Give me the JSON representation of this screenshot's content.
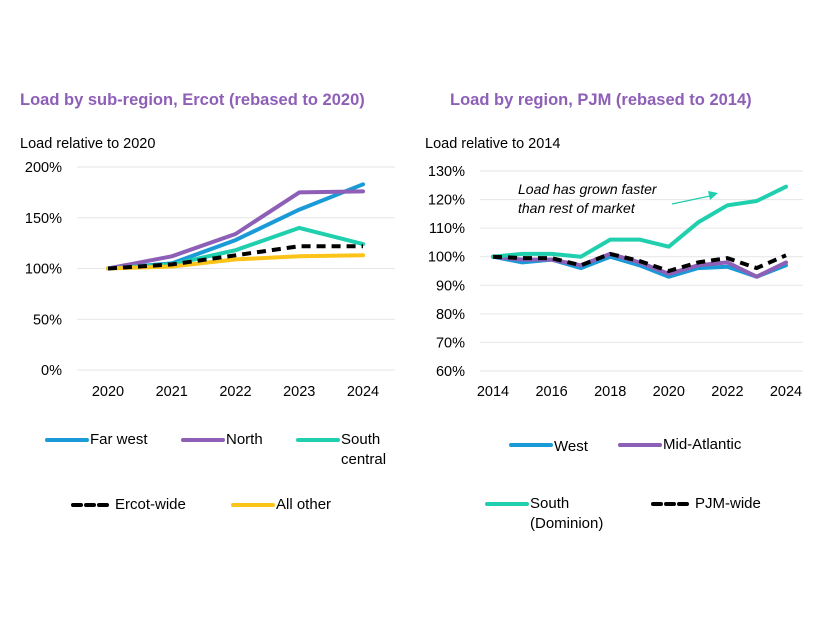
{
  "chart_data": [
    {
      "type": "line",
      "title": "Load by sub-region, Ercot (rebased to 2020)",
      "ylabel": "Load relative to 2020",
      "xlabel": "",
      "x": [
        "2020",
        "2021",
        "2022",
        "2023",
        "2024"
      ],
      "ylim": [
        0,
        200
      ],
      "yticks": [
        "0%",
        "50%",
        "100%",
        "150%",
        "200%"
      ],
      "ytick_values": [
        0,
        50,
        100,
        150,
        200
      ],
      "grid": true,
      "legend_position": "bottom",
      "series": [
        {
          "name": "Far west",
          "color": "#1a9ad6",
          "dashed": false,
          "values": [
            100,
            105,
            128,
            158,
            183
          ]
        },
        {
          "name": "North",
          "color": "#8e5fb7",
          "dashed": false,
          "values": [
            100,
            112,
            134,
            175,
            176
          ]
        },
        {
          "name": "South central",
          "color": "#1fcfae",
          "dashed": false,
          "values": [
            100,
            104,
            118,
            140,
            124
          ]
        },
        {
          "name": "Ercot-wide",
          "color": "#000000",
          "dashed": true,
          "values": [
            100,
            104,
            113,
            122,
            122
          ]
        },
        {
          "name": "All other",
          "color": "#fcc419",
          "dashed": false,
          "values": [
            100,
            102,
            109,
            112,
            113
          ]
        }
      ],
      "legend_rows": [
        [
          "Far west",
          "North",
          "South central"
        ],
        [
          "Ercot-wide",
          "All other"
        ]
      ]
    },
    {
      "type": "line",
      "title": "Load by region, PJM (rebased to 2014)",
      "ylabel": "Load relative to 2014",
      "xlabel": "",
      "x": [
        2014,
        2015,
        2016,
        2017,
        2018,
        2019,
        2020,
        2021,
        2022,
        2023,
        2024
      ],
      "xticks": [
        "2014",
        "2016",
        "2018",
        "2020",
        "2022",
        "2024"
      ],
      "ylim": [
        60,
        130
      ],
      "yticks": [
        "60%",
        "70%",
        "80%",
        "90%",
        "100%",
        "110%",
        "120%",
        "130%"
      ],
      "ytick_values": [
        60,
        70,
        80,
        90,
        100,
        110,
        120,
        130
      ],
      "grid": true,
      "legend_position": "bottom",
      "annotation": {
        "text_line1": "Load has grown faster",
        "text_line2": "than rest of market",
        "target_series": "South (Dominion)"
      },
      "series": [
        {
          "name": "West",
          "color": "#1a9ad6",
          "dashed": false,
          "values": [
            100,
            98,
            99,
            96,
            100,
            97,
            93,
            96,
            96.5,
            93,
            97
          ]
        },
        {
          "name": "Mid-Atlantic",
          "color": "#8e5fb7",
          "dashed": false,
          "values": [
            100,
            99,
            99,
            97,
            101,
            98,
            94,
            97,
            98,
            93,
            98
          ]
        },
        {
          "name": "South (Dominion)",
          "color": "#1fcfae",
          "dashed": false,
          "values": [
            100,
            101,
            101,
            100,
            106,
            106,
            103.5,
            112,
            118,
            119.5,
            124.5
          ]
        },
        {
          "name": "PJM-wide",
          "color": "#000000",
          "dashed": true,
          "values": [
            100,
            99.5,
            99.5,
            97,
            101,
            98.5,
            95,
            98,
            99.5,
            96,
            100.5
          ]
        }
      ]
    }
  ],
  "left_legend": [
    {
      "label": "Far west",
      "color": "#1a9ad6",
      "dashed": false
    },
    {
      "label": "North",
      "color": "#8e5fb7",
      "dashed": false
    },
    {
      "label_line1": "South",
      "label_line2": "central",
      "color": "#1fcfae",
      "dashed": false
    },
    {
      "label": "Ercot-wide",
      "color": "#000000",
      "dashed": true
    },
    {
      "label": "All other",
      "color": "#fcc419",
      "dashed": false
    }
  ],
  "right_legend": [
    {
      "label": "West",
      "color": "#1a9ad6",
      "dashed": false
    },
    {
      "label": "Mid-Atlantic",
      "color": "#8e5fb7",
      "dashed": false
    },
    {
      "label_line1": "South",
      "label_line2": "(Dominion)",
      "color": "#1fcfae",
      "dashed": false
    },
    {
      "label": "PJM-wide",
      "color": "#000000",
      "dashed": true
    }
  ],
  "title_color": "#8e5fb7",
  "grid_color": "#e6e6e6"
}
